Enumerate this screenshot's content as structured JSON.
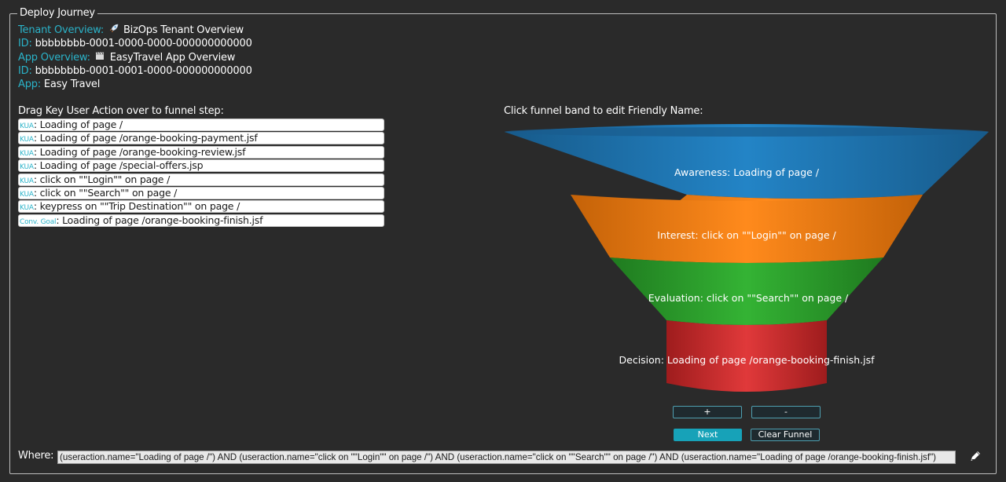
{
  "panel": {
    "legend": "Deploy Journey"
  },
  "overview": {
    "tenant_label": "Tenant Overview:",
    "tenant_icon": "rocket-icon",
    "tenant_name": "BizOps Tenant Overview",
    "tenant_id_label": "ID:",
    "tenant_id": "bbbbbbbb-0001-0000-0000-000000000000",
    "app_label": "App Overview:",
    "app_icon": "clapperboard-icon",
    "app_name": "EasyTravel App Overview",
    "app_id_label": "ID:",
    "app_id": "bbbbbbbb-0001-0001-0000-000000000000",
    "app_name_label": "App:",
    "app_value": "Easy Travel"
  },
  "kua": {
    "title": "Drag Key User Action over to funnel step:",
    "items": [
      {
        "tag": "KUA",
        "text": ": Loading of page /"
      },
      {
        "tag": "KUA",
        "text": ": Loading of page /orange-booking-payment.jsf"
      },
      {
        "tag": "KUA",
        "text": ": Loading of page /orange-booking-review.jsf"
      },
      {
        "tag": "KUA",
        "text": ": Loading of page /special-offers.jsp"
      },
      {
        "tag": "KUA",
        "text": ": click on \"\"Login\"\" on page /"
      },
      {
        "tag": "KUA",
        "text": ": click on \"\"Search\"\" on page /"
      },
      {
        "tag": "KUA",
        "text": ": keypress on \"\"Trip Destination\"\" on page /"
      },
      {
        "tag": "Conv. Goal",
        "text": ": Loading of page /orange-booking-finish.jsf"
      }
    ]
  },
  "funnel": {
    "title": "Click funnel band to edit Friendly Name:",
    "bands": [
      {
        "label": "Awareness: Loading of page /",
        "color": "#1f77b4"
      },
      {
        "label": "Interest: click on \"\"Login\"\" on page /",
        "color": "#ff7f0e"
      },
      {
        "label": "Evaluation: click on \"\"Search\"\" on page /",
        "color": "#2ca02c"
      },
      {
        "label": "Decision: Loading of page /orange-booking-finish.jsf",
        "color": "#d62728"
      }
    ]
  },
  "buttons": {
    "plus": "+",
    "minus": "-",
    "next": "Next",
    "clear": "Clear Funnel"
  },
  "where": {
    "label": "Where:",
    "value": "(useraction.name=\"Loading of page /\") AND (useraction.name=\"click on \"\"Login\"\" on page /\") AND (useraction.name=\"click on \"\"Search\"\" on page /\") AND (useraction.name=\"Loading of page /orange-booking-finish.jsf\")",
    "edit_icon": "pencil-icon"
  }
}
